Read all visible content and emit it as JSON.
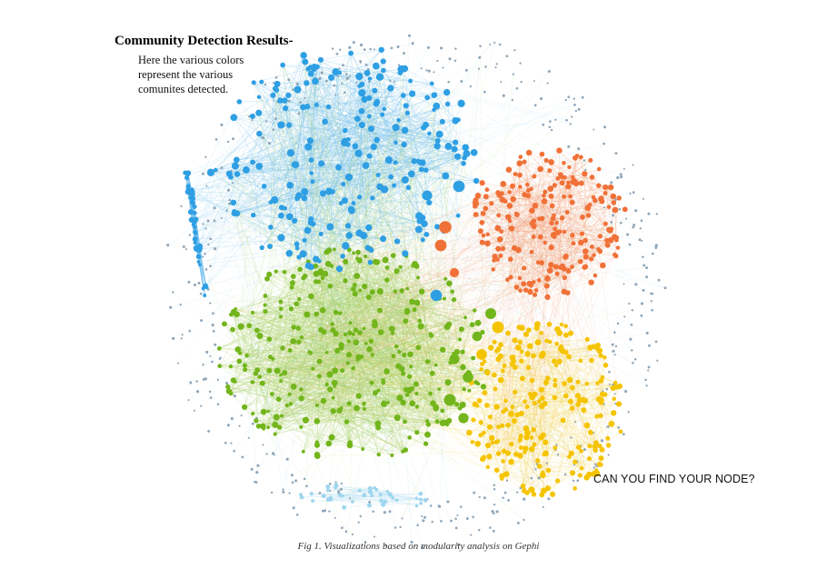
{
  "heading": {
    "title": "Community Detection Results-",
    "description_lines": [
      "Here the various colors",
      "represent the various",
      "comunites detected."
    ]
  },
  "callout": "CAN YOU FIND YOUR NODE?",
  "caption": "Fig 1. Visualizations based on modularity analysis on Gephi",
  "communities": [
    {
      "id": "blue",
      "color": "#2f9fe3",
      "edge_color": "#7cc3ee"
    },
    {
      "id": "orange",
      "color": "#f07138",
      "edge_color": "#f3a57f"
    },
    {
      "id": "green",
      "color": "#72b51c",
      "edge_color": "#a6d16a"
    },
    {
      "id": "yellow",
      "color": "#f5c400",
      "edge_color": "#f3d96a"
    },
    {
      "id": "light-blue",
      "color": "#9fd6ef",
      "edge_color": "#bfe3f3"
    },
    {
      "id": "peripheral",
      "color": "#8fa6b8",
      "edge_color": "#c9d6df"
    }
  ],
  "colors": {
    "label_text": "#333333",
    "background": "#ffffff"
  }
}
